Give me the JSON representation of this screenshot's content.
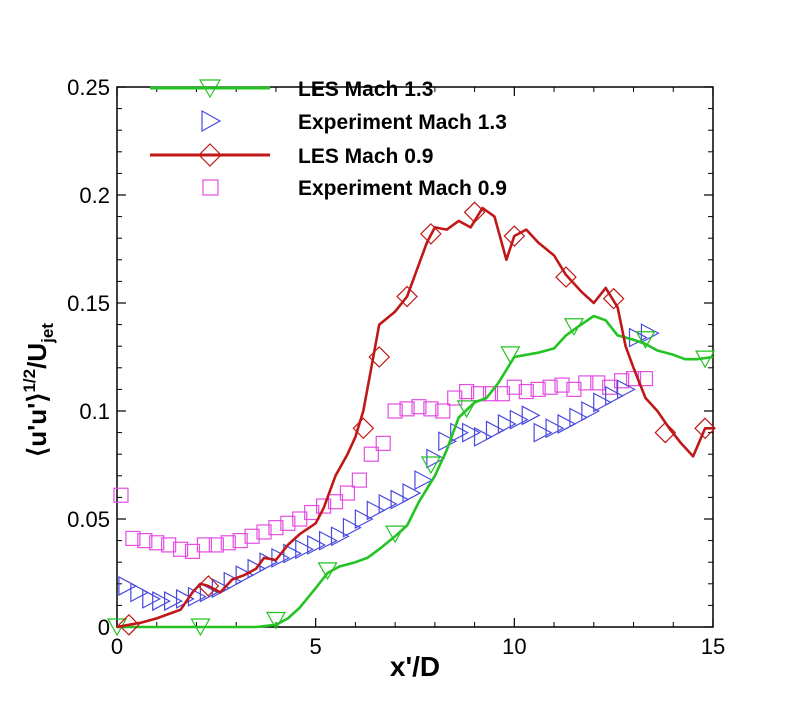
{
  "chart_data": {
    "type": "line",
    "xlabel": "x'/D",
    "ylabel_parts": {
      "main": "⟨u'u'⟩",
      "sup": "1/2",
      "mid": "/U",
      "sub": "jet"
    },
    "xlim": [
      0,
      15
    ],
    "ylim": [
      0,
      0.25
    ],
    "xticks": [
      0,
      5,
      10,
      15
    ],
    "yticks": [
      0,
      0.05,
      0.1,
      0.15,
      0.2,
      0.25
    ],
    "xtick_labels": [
      "0",
      "5",
      "10",
      "15"
    ],
    "ytick_labels": [
      "0",
      "0.05",
      "0.1",
      "0.15",
      "0.2",
      "0.25"
    ],
    "legend_position": "top-left",
    "series": [
      {
        "name": "LES Mach 1.3",
        "kind": "line-with-markers",
        "color": "#22c322",
        "marker": "triangle-down",
        "x": [
          0,
          0.5,
          1,
          1.5,
          2,
          2.5,
          3,
          3.5,
          4,
          4.3,
          4.6,
          5,
          5.3,
          5.6,
          6,
          6.3,
          6.6,
          7,
          7.3,
          7.6,
          8,
          8.3,
          8.6,
          9,
          9.3,
          9.6,
          10,
          10.3,
          10.6,
          11,
          11.3,
          11.6,
          12,
          12.3,
          12.6,
          13,
          13.3,
          13.6,
          14,
          14.3,
          14.6,
          15
        ],
        "y": [
          0,
          0,
          0,
          0,
          0,
          0,
          0,
          0,
          0.001,
          0.004,
          0.009,
          0.018,
          0.025,
          0.028,
          0.03,
          0.032,
          0.036,
          0.042,
          0.047,
          0.058,
          0.07,
          0.082,
          0.097,
          0.104,
          0.106,
          0.113,
          0.125,
          0.126,
          0.127,
          0.129,
          0.135,
          0.139,
          0.144,
          0.142,
          0.135,
          0.133,
          0.131,
          0.128,
          0.126,
          0.124,
          0.124,
          0.125
        ],
        "markers_x": [
          0,
          2.1,
          4,
          5.3,
          7,
          7.9,
          8.8,
          9.9,
          11.5,
          13.3,
          14.8
        ],
        "markers_y": [
          0,
          0,
          0.003,
          0.026,
          0.043,
          0.075,
          0.101,
          0.126,
          0.139,
          0.133,
          0.124
        ]
      },
      {
        "name": "Experiment Mach 1.3",
        "kind": "markers",
        "color": "#4a4adf",
        "marker": "triangle-right",
        "x": [
          0.25,
          0.55,
          0.85,
          1.1,
          1.4,
          1.7,
          2.0,
          2.3,
          2.6,
          2.9,
          3.2,
          3.5,
          3.8,
          4.1,
          4.4,
          4.7,
          5.0,
          5.3,
          5.6,
          5.9,
          6.2,
          6.5,
          6.8,
          7.1,
          7.4,
          7.7,
          8.0,
          8.3,
          8.6,
          8.9,
          9.2,
          9.5,
          9.8,
          10.1,
          10.4,
          10.7,
          11.0,
          11.3,
          11.6,
          11.9,
          12.2,
          12.5,
          12.8,
          13.1,
          13.4
        ],
        "y": [
          0.019,
          0.016,
          0.013,
          0.012,
          0.012,
          0.013,
          0.014,
          0.016,
          0.018,
          0.021,
          0.024,
          0.027,
          0.03,
          0.032,
          0.034,
          0.036,
          0.038,
          0.04,
          0.042,
          0.046,
          0.05,
          0.054,
          0.057,
          0.059,
          0.062,
          0.068,
          0.078,
          0.086,
          0.09,
          0.09,
          0.088,
          0.091,
          0.094,
          0.096,
          0.098,
          0.09,
          0.092,
          0.094,
          0.097,
          0.1,
          0.104,
          0.107,
          0.11,
          0.134,
          0.136
        ]
      },
      {
        "name": "LES Mach 0.9",
        "kind": "line-with-markers",
        "color": "#c01818",
        "marker": "diamond",
        "x": [
          0,
          0.3,
          0.6,
          1.0,
          1.3,
          1.6,
          1.9,
          2.1,
          2.3,
          2.6,
          2.9,
          3.2,
          3.5,
          3.7,
          4.0,
          4.3,
          4.6,
          5.0,
          5.2,
          5.5,
          5.8,
          6.0,
          6.2,
          6.4,
          6.6,
          6.8,
          7.0,
          7.3,
          7.6,
          7.8,
          8.0,
          8.3,
          8.6,
          8.9,
          9.2,
          9.5,
          9.8,
          10.0,
          10.3,
          10.6,
          11.0,
          11.3,
          11.7,
          12.0,
          12.3,
          12.6,
          12.8,
          13.0,
          13.3,
          13.6,
          13.9,
          14.2,
          14.5,
          14.8,
          15.0
        ],
        "y": [
          0,
          0.001,
          0.002,
          0.004,
          0.006,
          0.008,
          0.016,
          0.02,
          0.019,
          0.016,
          0.022,
          0.024,
          0.027,
          0.032,
          0.031,
          0.038,
          0.043,
          0.048,
          0.055,
          0.07,
          0.08,
          0.088,
          0.1,
          0.12,
          0.14,
          0.143,
          0.146,
          0.153,
          0.168,
          0.178,
          0.185,
          0.184,
          0.188,
          0.185,
          0.194,
          0.19,
          0.17,
          0.181,
          0.184,
          0.178,
          0.172,
          0.163,
          0.155,
          0.15,
          0.157,
          0.148,
          0.13,
          0.12,
          0.106,
          0.1,
          0.092,
          0.085,
          0.079,
          0.092,
          0.092
        ],
        "markers_x": [
          0.3,
          2.3,
          6.2,
          6.6,
          7.3,
          7.9,
          9.0,
          10.0,
          11.3,
          12.5,
          13.8,
          14.8
        ],
        "markers_y": [
          0.001,
          0.019,
          0.092,
          0.125,
          0.153,
          0.182,
          0.192,
          0.181,
          0.162,
          0.152,
          0.09,
          0.092
        ]
      },
      {
        "name": "Experiment Mach 0.9",
        "kind": "markers",
        "color": "#e24ee2",
        "marker": "square",
        "x": [
          0.1,
          0.4,
          0.7,
          1.0,
          1.3,
          1.6,
          1.9,
          2.2,
          2.5,
          2.8,
          3.1,
          3.4,
          3.7,
          4.0,
          4.3,
          4.6,
          4.9,
          5.2,
          5.5,
          5.8,
          6.1,
          6.4,
          6.7,
          7.0,
          7.3,
          7.6,
          7.9,
          8.2,
          8.5,
          8.8,
          9.1,
          9.4,
          9.7,
          10.0,
          10.3,
          10.6,
          10.9,
          11.2,
          11.5,
          11.8,
          12.1,
          12.4,
          12.7,
          13.0,
          13.3
        ],
        "y": [
          0.061,
          0.041,
          0.04,
          0.039,
          0.038,
          0.036,
          0.035,
          0.038,
          0.038,
          0.039,
          0.04,
          0.042,
          0.044,
          0.046,
          0.048,
          0.05,
          0.053,
          0.056,
          0.058,
          0.062,
          0.068,
          0.08,
          0.085,
          0.1,
          0.101,
          0.102,
          0.101,
          0.1,
          0.106,
          0.109,
          0.108,
          0.108,
          0.108,
          0.111,
          0.109,
          0.11,
          0.111,
          0.112,
          0.11,
          0.113,
          0.113,
          0.111,
          0.114,
          0.115,
          0.115
        ]
      }
    ]
  }
}
